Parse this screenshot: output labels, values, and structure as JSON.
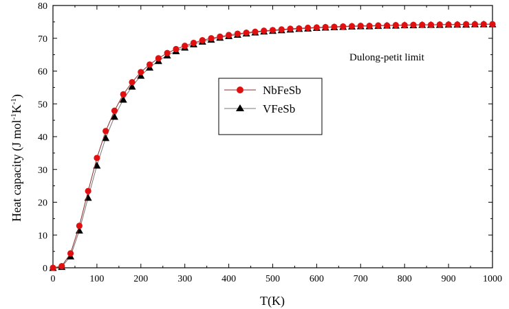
{
  "chart_data": {
    "type": "line",
    "title": "",
    "xlabel": "T(K)",
    "ylabel": "Heat capacity (J mol",
    "ylabel_sup1": "-1",
    "ylabel_mid": "K",
    "ylabel_sup2": "-1",
    "ylabel_end": ")",
    "xlim": [
      0,
      1000
    ],
    "ylim": [
      0,
      80
    ],
    "x_ticks": [
      0,
      100,
      200,
      300,
      400,
      500,
      600,
      700,
      800,
      900,
      1000
    ],
    "y_ticks": [
      0,
      10,
      20,
      30,
      40,
      50,
      60,
      70,
      80
    ],
    "x_tick_labels": [
      "0",
      "100",
      "200",
      "300",
      "400",
      "500",
      "600",
      "700",
      "800",
      "900",
      "1000"
    ],
    "y_tick_labels": [
      "0",
      "10",
      "20",
      "30",
      "40",
      "50",
      "60",
      "70",
      "80"
    ],
    "annotation": "Dulong-petit limit",
    "legend_position": "center",
    "x": [
      0,
      20,
      40,
      60,
      80,
      100,
      120,
      140,
      160,
      180,
      200,
      220,
      240,
      260,
      280,
      300,
      320,
      340,
      360,
      380,
      400,
      420,
      440,
      460,
      480,
      500,
      520,
      540,
      560,
      580,
      600,
      620,
      640,
      660,
      680,
      700,
      720,
      740,
      760,
      780,
      800,
      820,
      840,
      860,
      880,
      900,
      920,
      940,
      960,
      980,
      1000
    ],
    "series": [
      {
        "name": "NbFeSb",
        "marker": "circle",
        "color": "#e01010",
        "line_color": "#8b2a2a",
        "values": [
          0,
          0.5,
          4.4,
          12.8,
          23.4,
          33.5,
          41.7,
          47.9,
          52.9,
          56.6,
          59.7,
          62.0,
          63.9,
          65.5,
          66.7,
          67.7,
          68.6,
          69.4,
          70.0,
          70.5,
          71.0,
          71.4,
          71.7,
          72.0,
          72.3,
          72.5,
          72.7,
          72.9,
          73.0,
          73.2,
          73.3,
          73.4,
          73.5,
          73.6,
          73.7,
          73.8,
          73.8,
          73.9,
          73.9,
          74.0,
          74.0,
          74.1,
          74.1,
          74.1,
          74.2,
          74.2,
          74.2,
          74.3,
          74.3,
          74.3,
          74.3
        ]
      },
      {
        "name": "VFeSb",
        "marker": "triangle",
        "color": "#000000",
        "line_color": "#777777",
        "values": [
          0,
          0.3,
          3.5,
          11.4,
          21.4,
          31.2,
          39.6,
          46.1,
          51.3,
          55.3,
          58.6,
          61.1,
          63.1,
          64.8,
          66.1,
          67.2,
          68.2,
          69.0,
          69.6,
          70.2,
          70.7,
          71.1,
          71.5,
          71.8,
          72.1,
          72.3,
          72.5,
          72.7,
          72.9,
          73.0,
          73.2,
          73.3,
          73.4,
          73.5,
          73.6,
          73.7,
          73.7,
          73.8,
          73.9,
          73.9,
          74.0,
          74.0,
          74.1,
          74.1,
          74.1,
          74.2,
          74.2,
          74.2,
          74.3,
          74.3,
          74.3
        ]
      }
    ]
  }
}
